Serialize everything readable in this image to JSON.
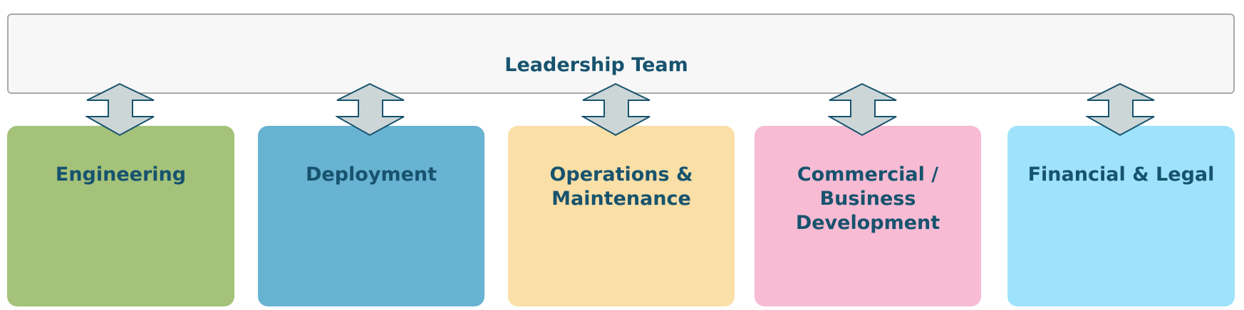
{
  "leadership": {
    "title": "Leadership Team"
  },
  "departments": [
    {
      "name": "engineering",
      "lines": [
        "Engineering"
      ],
      "color": "#a5c27a"
    },
    {
      "name": "deployment",
      "lines": [
        "Deployment"
      ],
      "color": "#68b2d2"
    },
    {
      "name": "operations-maintenance",
      "lines": [
        "Operations &",
        "Maintenance"
      ],
      "color": "#fadfa7"
    },
    {
      "name": "commercial-business-development",
      "lines": [
        "Commercial /",
        "Business",
        "Development"
      ],
      "color": "#f7bbd3"
    },
    {
      "name": "financial-legal",
      "lines": [
        "Financial & Legal"
      ],
      "color": "#9ee3fb"
    }
  ],
  "colors": {
    "text": "#17536e",
    "arrow_fill": "#cdd6d7",
    "arrow_stroke": "#17536e",
    "leadership_fill": "#f7f7f7",
    "leadership_border": "#a9a9a9"
  },
  "icons": {
    "connector": "double-arrow-vertical-icon"
  }
}
